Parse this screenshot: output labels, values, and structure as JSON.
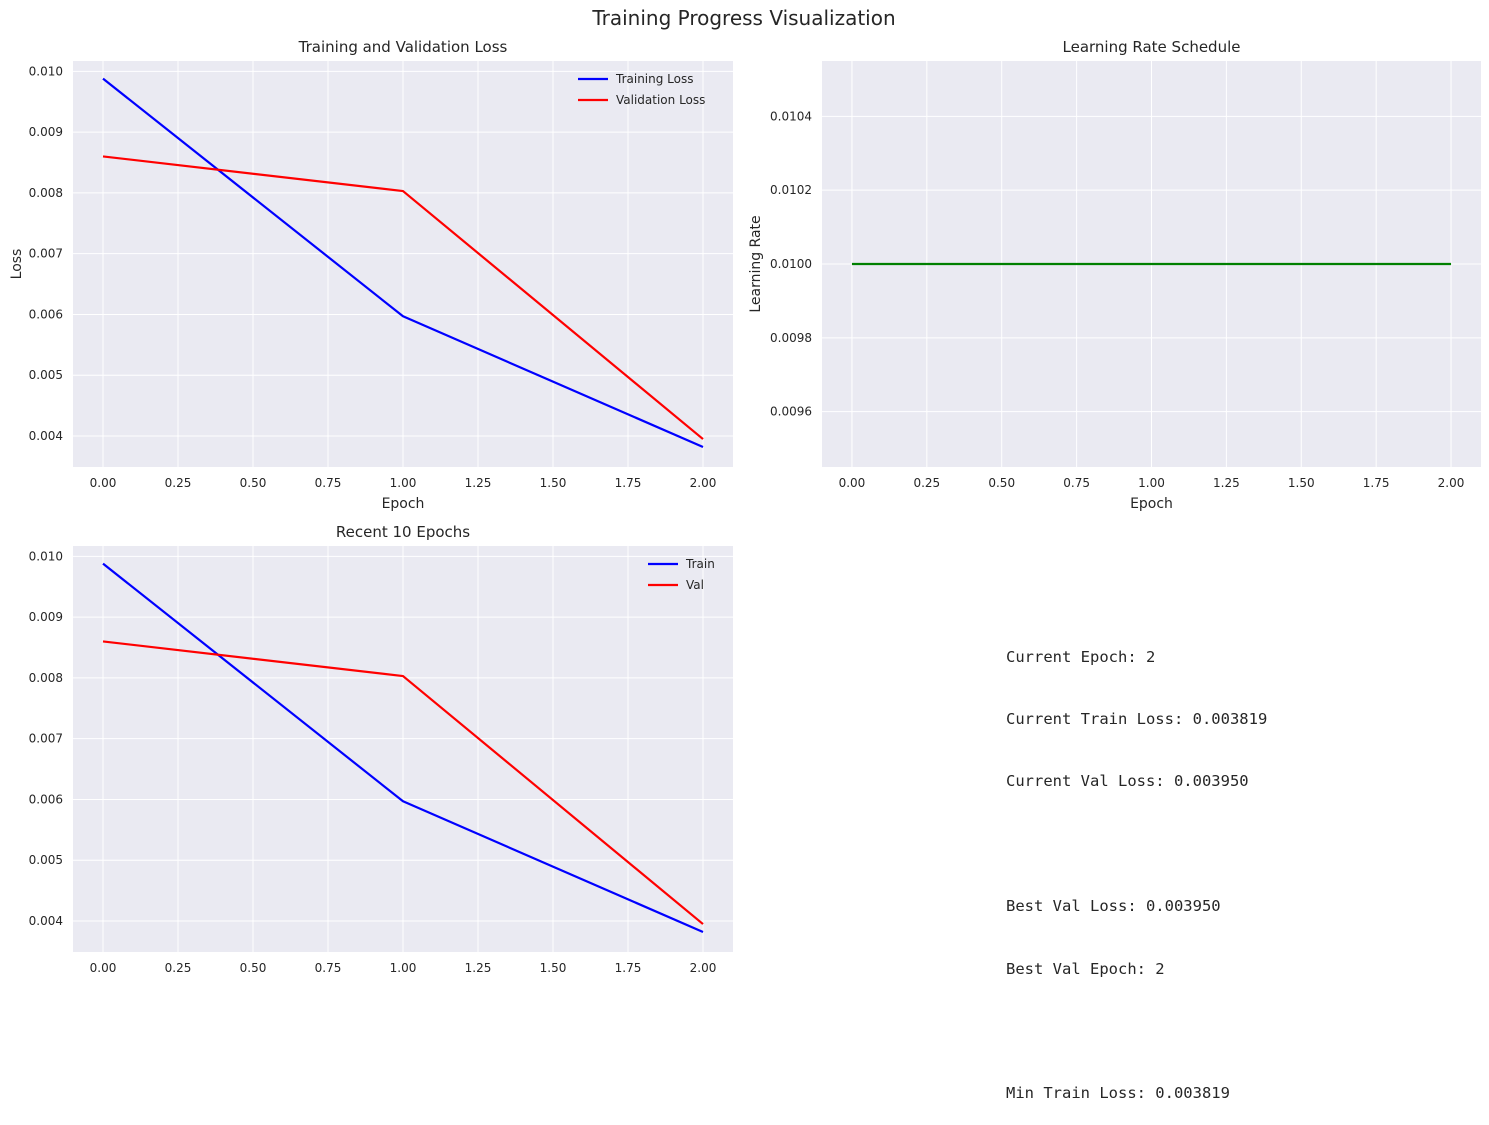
{
  "figure": {
    "suptitle": "Training Progress Visualization"
  },
  "chart_data": [
    {
      "type": "line",
      "title": "Training and Validation Loss",
      "xlabel": "Epoch",
      "ylabel": "Loss",
      "x": [
        0,
        1,
        2
      ],
      "xlim": [
        -0.1,
        2.1
      ],
      "ylim": [
        0.00349,
        0.01017
      ],
      "xticks": [
        0,
        0.25,
        0.5,
        0.75,
        1,
        1.25,
        1.5,
        1.75,
        2
      ],
      "xtick_labels": [
        "0.00",
        "0.25",
        "0.50",
        "0.75",
        "1.00",
        "1.25",
        "1.50",
        "1.75",
        "2.00"
      ],
      "yticks": [
        0.004,
        0.005,
        0.006,
        0.007,
        0.008,
        0.009,
        0.01
      ],
      "ytick_labels": [
        "0.004",
        "0.005",
        "0.006",
        "0.007",
        "0.008",
        "0.009",
        "0.010"
      ],
      "grid": true,
      "legend": "top-right",
      "series": [
        {
          "name": "Training Loss",
          "color": "#0000ff",
          "values": [
            0.00988,
            0.00597,
            0.003819
          ]
        },
        {
          "name": "Validation Loss",
          "color": "#ff0000",
          "values": [
            0.0086,
            0.00803,
            0.00395
          ]
        }
      ]
    },
    {
      "type": "line",
      "title": "Learning Rate Schedule",
      "xlabel": "Epoch",
      "ylabel": "Learning Rate",
      "x": [
        0,
        1,
        2
      ],
      "xlim": [
        -0.1,
        2.1
      ],
      "ylim": [
        0.00945,
        0.01055
      ],
      "xticks": [
        0,
        0.25,
        0.5,
        0.75,
        1,
        1.25,
        1.5,
        1.75,
        2
      ],
      "xtick_labels": [
        "0.00",
        "0.25",
        "0.50",
        "0.75",
        "1.00",
        "1.25",
        "1.50",
        "1.75",
        "2.00"
      ],
      "yticks": [
        0.0096,
        0.0098,
        0.01,
        0.0102,
        0.0104
      ],
      "ytick_labels": [
        "0.0096",
        "0.0098",
        "0.0100",
        "0.0102",
        "0.0104"
      ],
      "grid": true,
      "series": [
        {
          "color": "#008000",
          "values": [
            0.01,
            0.01,
            0.01
          ]
        }
      ]
    },
    {
      "type": "line",
      "title": "Recent 10 Epochs",
      "xlabel": "",
      "ylabel": "",
      "x": [
        0,
        1,
        2
      ],
      "xlim": [
        -0.1,
        2.1
      ],
      "ylim": [
        0.00349,
        0.01017
      ],
      "xticks": [
        0,
        0.25,
        0.5,
        0.75,
        1,
        1.25,
        1.5,
        1.75,
        2
      ],
      "xtick_labels": [
        "0.00",
        "0.25",
        "0.50",
        "0.75",
        "1.00",
        "1.25",
        "1.50",
        "1.75",
        "2.00"
      ],
      "yticks": [
        0.004,
        0.005,
        0.006,
        0.007,
        0.008,
        0.009,
        0.01
      ],
      "ytick_labels": [
        "0.004",
        "0.005",
        "0.006",
        "0.007",
        "0.008",
        "0.009",
        "0.010"
      ],
      "grid": true,
      "legend": "top-right",
      "series": [
        {
          "name": "Train",
          "color": "#0000ff",
          "values": [
            0.00988,
            0.00597,
            0.003819
          ]
        },
        {
          "name": "Val",
          "color": "#ff0000",
          "values": [
            0.0086,
            0.00803,
            0.00395
          ]
        }
      ]
    }
  ],
  "stats": {
    "lines": [
      "Current Epoch: 2",
      "Current Train Loss: 0.003819",
      "Current Val Loss: 0.003950",
      "",
      "Best Val Loss: 0.003950",
      "Best Val Epoch: 2",
      "",
      "Min Train Loss: 0.003819"
    ]
  },
  "style": {
    "axes_bg": "#eaeaf2",
    "grid_color": "#ffffff",
    "text_color": "#262626"
  }
}
